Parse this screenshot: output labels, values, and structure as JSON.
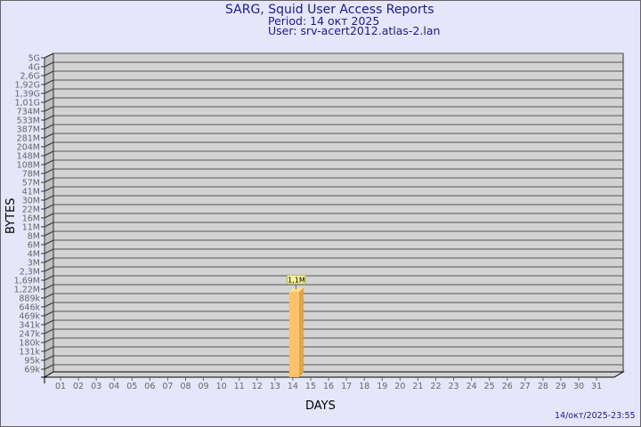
{
  "header": {
    "title": "SARG, Squid User Access Reports",
    "period": "Period: 14 окт 2025",
    "user": "User: srv-acert2012.atlas-2.lan"
  },
  "footer": {
    "timestamp": "14/окт/2025-23:55"
  },
  "chart_data": {
    "type": "bar",
    "xlabel": "DAYS",
    "ylabel": "BYTES",
    "y_scale": "log",
    "y_tick_labels": [
      "5G",
      "4G",
      "2,6G",
      "1,92G",
      "1,39G",
      "1,01G",
      "734M",
      "533M",
      "387M",
      "281M",
      "204M",
      "148M",
      "108M",
      "78M",
      "57M",
      "41M",
      "30M",
      "22M",
      "16M",
      "11M",
      "8M",
      "6M",
      "4M",
      "3M",
      "2,3M",
      "1,69M",
      "1,22M",
      "889k",
      "646k",
      "469k",
      "341k",
      "247k",
      "180k",
      "131k",
      "95k",
      "69k"
    ],
    "categories": [
      "01",
      "02",
      "03",
      "04",
      "05",
      "06",
      "07",
      "08",
      "09",
      "10",
      "11",
      "12",
      "13",
      "14",
      "15",
      "16",
      "17",
      "18",
      "19",
      "20",
      "21",
      "22",
      "23",
      "24",
      "25",
      "26",
      "27",
      "28",
      "29",
      "30",
      "31"
    ],
    "series": [
      {
        "values": {
          "14": 1100000
        }
      }
    ],
    "data_labels": {
      "14": "1,1M"
    },
    "grid": true,
    "colors": {
      "bar_front": "#ffc266",
      "bar_side": "#e0a24a",
      "bar_top": "#ffe08a",
      "wall": "#d3d3d3",
      "label_bg": "#f7f1a0"
    }
  }
}
